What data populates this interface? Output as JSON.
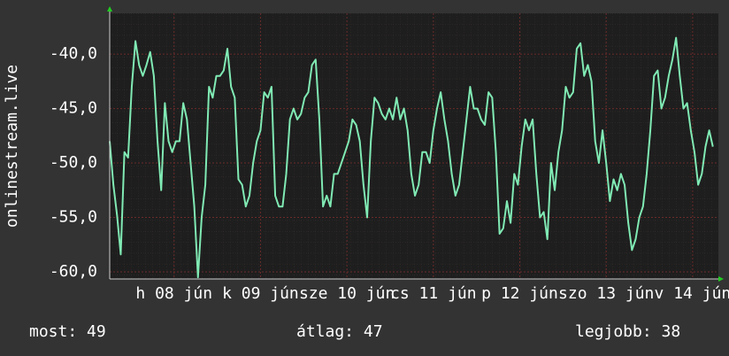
{
  "chart_data": {
    "type": "line",
    "ylabel": "onlinestream.live",
    "series": [
      {
        "name": "onlinestream.live",
        "color": "#80eab4",
        "values": [
          -48,
          -52,
          -54.8,
          -58.4,
          -49,
          -49.5,
          -43,
          -38.8,
          -41,
          -42,
          -41,
          -39.8,
          -42,
          -48,
          -52.5,
          -44.5,
          -48,
          -49,
          -48,
          -48,
          -44.5,
          -46,
          -50,
          -54,
          -60.5,
          -55,
          -52,
          -43,
          -44,
          -42,
          -42,
          -41.5,
          -39.5,
          -43,
          -44,
          -51.5,
          -52,
          -54,
          -53,
          -50,
          -48,
          -47,
          -43.5,
          -44,
          -43,
          -53,
          -54,
          -54,
          -51,
          -46,
          -45,
          -46,
          -45.5,
          -44,
          -43.5,
          -41,
          -40.5,
          -46,
          -54,
          -53,
          -54,
          -51,
          -51,
          -50,
          -49,
          -48,
          -46,
          -46.5,
          -48,
          -52,
          -55,
          -48,
          -44,
          -44.5,
          -45.5,
          -46,
          -45,
          -46,
          -44,
          -46,
          -45,
          -47,
          -51,
          -53,
          -52,
          -49,
          -49,
          -50,
          -47,
          -45,
          -43.5,
          -46,
          -48,
          -51,
          -53,
          -52,
          -49,
          -46,
          -43,
          -45,
          -45,
          -46,
          -46.5,
          -43.5,
          -44,
          -49,
          -56.5,
          -56,
          -53.5,
          -55.5,
          -51,
          -52,
          -48.5,
          -46,
          -47,
          -46,
          -51,
          -55,
          -54.5,
          -57,
          -50,
          -52.5,
          -49,
          -47,
          -43,
          -44,
          -43.5,
          -39.5,
          -39,
          -42,
          -41,
          -42.5,
          -48,
          -50,
          -47,
          -50,
          -53.5,
          -51.5,
          -52.5,
          -51,
          -52,
          -55.5,
          -58,
          -57,
          -55,
          -54,
          -51,
          -47,
          -42,
          -41.5,
          -45,
          -44,
          -42,
          -40.5,
          -38.5,
          -42,
          -45,
          -44.5,
          -47,
          -49,
          -52,
          -51,
          -48.5,
          -47,
          -48.5
        ]
      }
    ],
    "xlim": [
      0,
      165.5
    ],
    "xticks": [
      {
        "value": 17.5,
        "label": "h 08 jún"
      },
      {
        "value": 41,
        "label": "k 09 jún"
      },
      {
        "value": 64.5,
        "label": "sze 10 jún"
      },
      {
        "value": 88,
        "label": "cs 11 jún"
      },
      {
        "value": 111.5,
        "label": "p 12 jún"
      },
      {
        "value": 135,
        "label": "szo 13 jún"
      },
      {
        "value": 158.5,
        "label": "v 14 jún"
      }
    ],
    "ylim": [
      -60.65,
      -36.25
    ],
    "yticks": [
      {
        "value": -40,
        "label": "-40,0"
      },
      {
        "value": -45,
        "label": "-45,0"
      },
      {
        "value": -50,
        "label": "-50,0"
      },
      {
        "value": -55,
        "label": "-55,0"
      },
      {
        "value": -60,
        "label": "-60,0"
      }
    ],
    "grid": true,
    "footer": [
      "most: 49",
      "átlag: 47",
      "legjobb: 38"
    ]
  }
}
